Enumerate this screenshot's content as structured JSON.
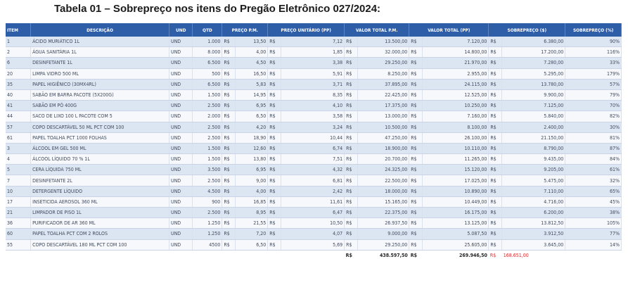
{
  "caption": "Tabela 01 – Sobrepreço nos itens do Pregão Eletrônico 027/2024:",
  "headers": {
    "item": "ITEM",
    "descricao": "DESCRIÇÃO",
    "und": "UND",
    "qtd": "QTD",
    "preco_pm": "PREÇO P.M.",
    "preco_unit": "PREÇO UNITÁRIO (PP)",
    "valor_pm": "VALOR TOTAL P.M.",
    "valor_pp": "VALOR TOTAL (PP)",
    "sobrepreco": "SOBREPREÇO ($)",
    "sobrepreco_pct": "SOBREPREÇO (%)"
  },
  "currency": "R$",
  "rows": [
    {
      "item": "1",
      "desc": "ÁCIDO MURIÁTICO 1L",
      "und": "UND",
      "qtd": "1.000",
      "pm": "13,50",
      "pp": "7,12",
      "vpm": "13.500,00",
      "vpp": "7.120,00",
      "sob": "6.380,00",
      "pct": "90%"
    },
    {
      "item": "2",
      "desc": "ÁGUA SANITÁRIA 1L",
      "und": "UND",
      "qtd": "8.000",
      "pm": "4,00",
      "pp": "1,85",
      "vpm": "32.000,00",
      "vpp": "14.800,00",
      "sob": "17.200,00",
      "pct": "116%"
    },
    {
      "item": "6",
      "desc": "DESINFETANTE 1L",
      "und": "UND",
      "qtd": "6.500",
      "pm": "4,50",
      "pp": "3,38",
      "vpm": "29.250,00",
      "vpp": "21.970,00",
      "sob": "7.280,00",
      "pct": "33%"
    },
    {
      "item": "20",
      "desc": "LIMPA VIDRO 500 ML",
      "und": "UND",
      "qtd": "500",
      "pm": "16,50",
      "pp": "5,91",
      "vpm": "8.250,00",
      "vpp": "2.955,00",
      "sob": "5.295,00",
      "pct": "179%"
    },
    {
      "item": "35",
      "desc": "PAPEL HIGIÊNICO (30MX4RL)",
      "und": "UND",
      "qtd": "6.500",
      "pm": "5,83",
      "pp": "3,71",
      "vpm": "37.895,00",
      "vpp": "24.115,00",
      "sob": "13.780,00",
      "pct": "57%"
    },
    {
      "item": "40",
      "desc": "SABÃO EM BARRA PACOTE (5X200G)",
      "und": "UND",
      "qtd": "1.500",
      "pm": "14,95",
      "pp": "8,35",
      "vpm": "22.425,00",
      "vpp": "12.525,00",
      "sob": "9.900,00",
      "pct": "79%"
    },
    {
      "item": "41",
      "desc": "SABÃO EM PÓ 400G",
      "und": "UND",
      "qtd": "2.500",
      "pm": "6,95",
      "pp": "4,10",
      "vpm": "17.375,00",
      "vpp": "10.250,00",
      "sob": "7.125,00",
      "pct": "70%"
    },
    {
      "item": "44",
      "desc": "SACO DE LIXO 100 L PACOTE COM 5",
      "und": "UND",
      "qtd": "2.000",
      "pm": "6,50",
      "pp": "3,58",
      "vpm": "13.000,00",
      "vpp": "7.160,00",
      "sob": "5.840,00",
      "pct": "82%"
    },
    {
      "item": "57",
      "desc": " COPO DESCARTÁVEL 50 ML PCT COM 100",
      "und": "UND",
      "qtd": "2.500",
      "pm": "4,20",
      "pp": "3,24",
      "vpm": "10.500,00",
      "vpp": "8.100,00",
      "sob": "2.400,00",
      "pct": "30%"
    },
    {
      "item": "61",
      "desc": "PAPEL TOALHA PCT 1000 FOLHAS",
      "und": "UND",
      "qtd": "2.500",
      "pm": "18,90",
      "pp": "10,44",
      "vpm": "47.250,00",
      "vpp": "26.100,00",
      "sob": "21.150,00",
      "pct": "81%"
    },
    {
      "item": "3",
      "desc": "ÁLCOOL EM GEL 500 ML",
      "und": "UND",
      "qtd": "1.500",
      "pm": "12,60",
      "pp": "6,74",
      "vpm": "18.900,00",
      "vpp": "10.110,00",
      "sob": "8.790,00",
      "pct": "87%"
    },
    {
      "item": "4",
      "desc": "ÁLCOOL LÍQUIDO 70 % 1L",
      "und": "UND",
      "qtd": "1.500",
      "pm": "13,80",
      "pp": "7,51",
      "vpm": "20.700,00",
      "vpp": "11.265,00",
      "sob": "9.435,00",
      "pct": "84%"
    },
    {
      "item": "5",
      "desc": "CERA LÍQUIDA 750 ML",
      "und": "UND",
      "qtd": "3.500",
      "pm": "6,95",
      "pp": "4,32",
      "vpm": "24.325,00",
      "vpp": "15.120,00",
      "sob": "9.205,00",
      "pct": "61%"
    },
    {
      "item": "7",
      "desc": "DESINFETANTE 2L",
      "und": "UND",
      "qtd": "2.500",
      "pm": "9,00",
      "pp": "6,81",
      "vpm": "22.500,00",
      "vpp": "17.025,00",
      "sob": "5.475,00",
      "pct": "32%"
    },
    {
      "item": "10",
      "desc": "DETERGENTE LÍQUIDO",
      "und": "UND",
      "qtd": "4.500",
      "pm": "4,00",
      "pp": "2,42",
      "vpm": "18.000,00",
      "vpp": "10.890,00",
      "sob": "7.110,00",
      "pct": "65%"
    },
    {
      "item": "17",
      "desc": "INSETICIDA AEROSOL 360 ML",
      "und": "UND",
      "qtd": "900",
      "pm": "16,85",
      "pp": "11,61",
      "vpm": "15.165,00",
      "vpp": "10.449,00",
      "sob": "4.716,00",
      "pct": "45%"
    },
    {
      "item": "21",
      "desc": "LIMPADOR DE PISO 1L",
      "und": "UND",
      "qtd": "2.500",
      "pm": "8,95",
      "pp": "6,47",
      "vpm": "22.375,00",
      "vpp": "16.175,00",
      "sob": "6.200,00",
      "pct": "38%"
    },
    {
      "item": "36",
      "desc": "PURIFICADOR DE AR 360 ML",
      "und": "UND",
      "qtd": "1.250",
      "pm": "21,55",
      "pp": "10,50",
      "vpm": "26.937,50",
      "vpp": "13.125,00",
      "sob": "13.812,50",
      "pct": "105%"
    },
    {
      "item": "60",
      "desc": "PAPEL TOALHA PCT COM 2 ROLOS",
      "und": "UND",
      "qtd": "1.250",
      "pm": "7,20",
      "pp": "4,07",
      "vpm": "9.000,00",
      "vpp": "5.087,50",
      "sob": "3.912,50",
      "pct": "77%"
    },
    {
      "item": "55",
      "desc": "COPO DESCARTÁVEL 180 ML PCT COM 100",
      "und": "UND",
      "qtd": "4500",
      "pm": "6,50",
      "pp": "5,69",
      "vpm": "29.250,00",
      "vpp": "25.605,00",
      "sob": "3.645,00",
      "pct": "14%"
    }
  ],
  "totals": {
    "vpm": "438.597,50",
    "vpp": "269.946,50",
    "sob": "168.651,00"
  },
  "colors": {
    "header_bg": "#2e5ea8",
    "row_odd": "#dce6f3",
    "row_even": "#f6f8fc",
    "total_sobrepreco": "#e0292a"
  }
}
